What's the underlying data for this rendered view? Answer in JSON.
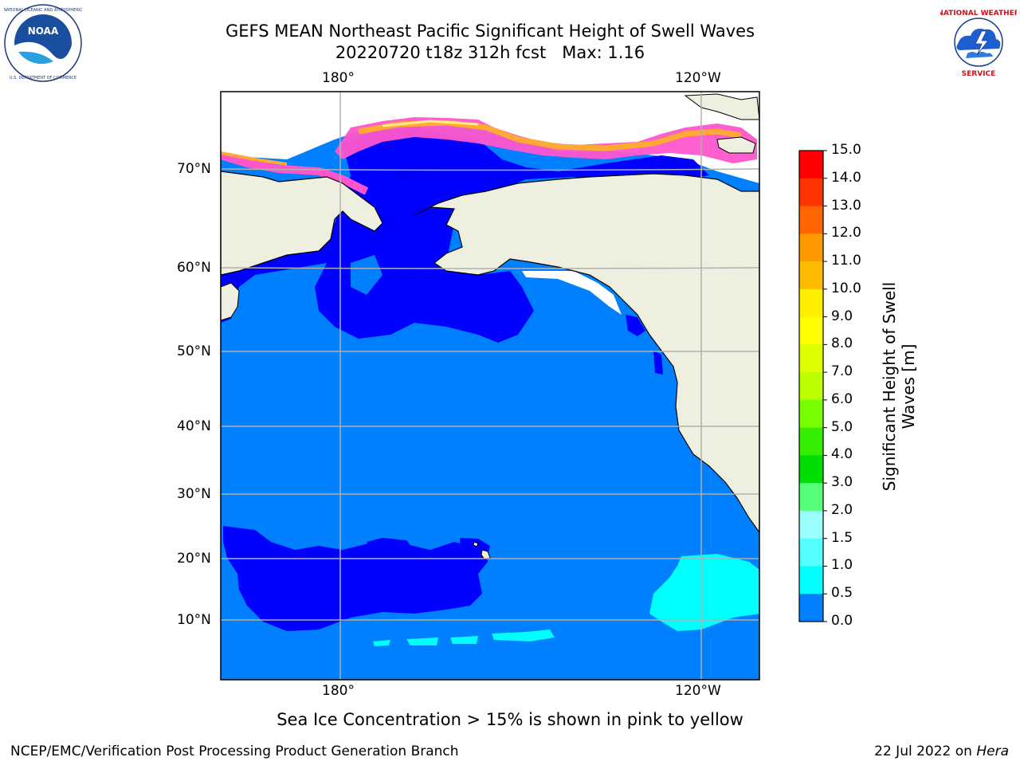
{
  "header": {
    "title": "GEFS MEAN Northeast Pacific Significant Height of Swell Waves",
    "subtitle": "20220720 t18z 312h fcst   Max: 1.16"
  },
  "logos": {
    "left": "NOAA",
    "left_ring_text": "NATIONAL OCEANIC AND ATMOSPHERIC ADMINISTRATION · U.S. DEPARTMENT OF COMMERCE",
    "right_ring_text": "NATIONAL WEATHER SERVICE"
  },
  "map": {
    "lon_labels": [
      "180°",
      "120°W"
    ],
    "lat_labels": [
      "70°N",
      "60°N",
      "50°N",
      "40°N",
      "30°N",
      "20°N",
      "10°N"
    ],
    "colors": {
      "land": "#efefdf",
      "ocean_main": "#0080ff",
      "ocean_low": "#0000ff",
      "ocean_mid": "#00ffff",
      "gridline": "#b0b0b0",
      "ice_pink": "#ff55cc",
      "ice_orange": "#ffaa33",
      "ice_yellow": "#ffee88"
    }
  },
  "colorbar": {
    "label": "Significant Height of Swell Waves [m]",
    "label_line1": "Significant Height of Swell",
    "label_line2": "Waves [m]",
    "ticks": [
      "15.0",
      "14.0",
      "13.0",
      "12.0",
      "11.0",
      "10.0",
      "9.0",
      "8.0",
      "7.0",
      "6.0",
      "5.0",
      "4.0",
      "3.0",
      "2.0",
      "1.5",
      "1.0",
      "0.5",
      "0.0"
    ],
    "bands": [
      "#ff0000",
      "#ff3300",
      "#ff6600",
      "#ff9900",
      "#ffbb00",
      "#ffee00",
      "#ffff00",
      "#ddff00",
      "#bbff00",
      "#77ff00",
      "#33ee00",
      "#00dd00",
      "#55ff77",
      "#99ffff",
      "#55ffff",
      "#00ffff",
      "#0080ff",
      "#0000ff"
    ]
  },
  "caption": "Sea Ice Concentration > 15% is shown in pink to yellow",
  "footer": {
    "left": "NCEP/EMC/Verification Post Processing Product Generation Branch",
    "right_date": "22 Jul 2022 on ",
    "right_host": "Hera"
  }
}
